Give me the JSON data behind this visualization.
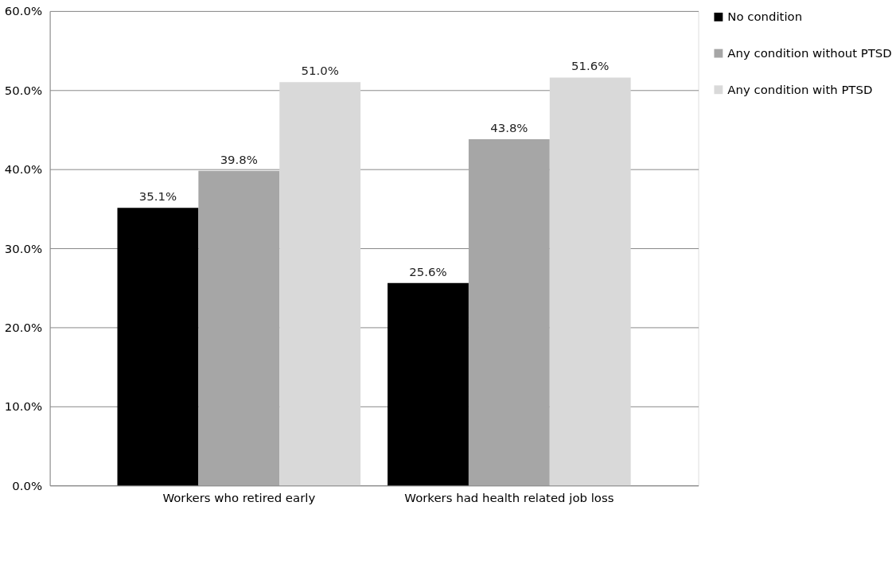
{
  "chart_data": {
    "type": "bar",
    "categories": [
      "Workers who retired early",
      "Workers had health related job loss"
    ],
    "series": [
      {
        "name": "No condition",
        "color": "#000000",
        "values": [
          35.1,
          25.6
        ],
        "value_labels": [
          "35.1%",
          "25.6%"
        ]
      },
      {
        "name": "Any condition without PTSD",
        "color": "#a6a6a6",
        "values": [
          39.8,
          43.8
        ],
        "value_labels": [
          "39.8%",
          "43.8%"
        ]
      },
      {
        "name": "Any condition with PTSD",
        "color": "#d9d9d9",
        "values": [
          51.0,
          51.6
        ],
        "value_labels": [
          "51.0%",
          "51.6%"
        ]
      }
    ],
    "ylim": [
      0,
      60
    ],
    "yticks": [
      {
        "value": 0,
        "label": "0.0%"
      },
      {
        "value": 10,
        "label": "10.0%"
      },
      {
        "value": 20,
        "label": "20.0%"
      },
      {
        "value": 30,
        "label": "30.0%"
      },
      {
        "value": 40,
        "label": "40.0%"
      },
      {
        "value": 50,
        "label": "50.0%"
      },
      {
        "value": 60,
        "label": "60.0%"
      }
    ],
    "grid": "y",
    "legend": "right"
  }
}
